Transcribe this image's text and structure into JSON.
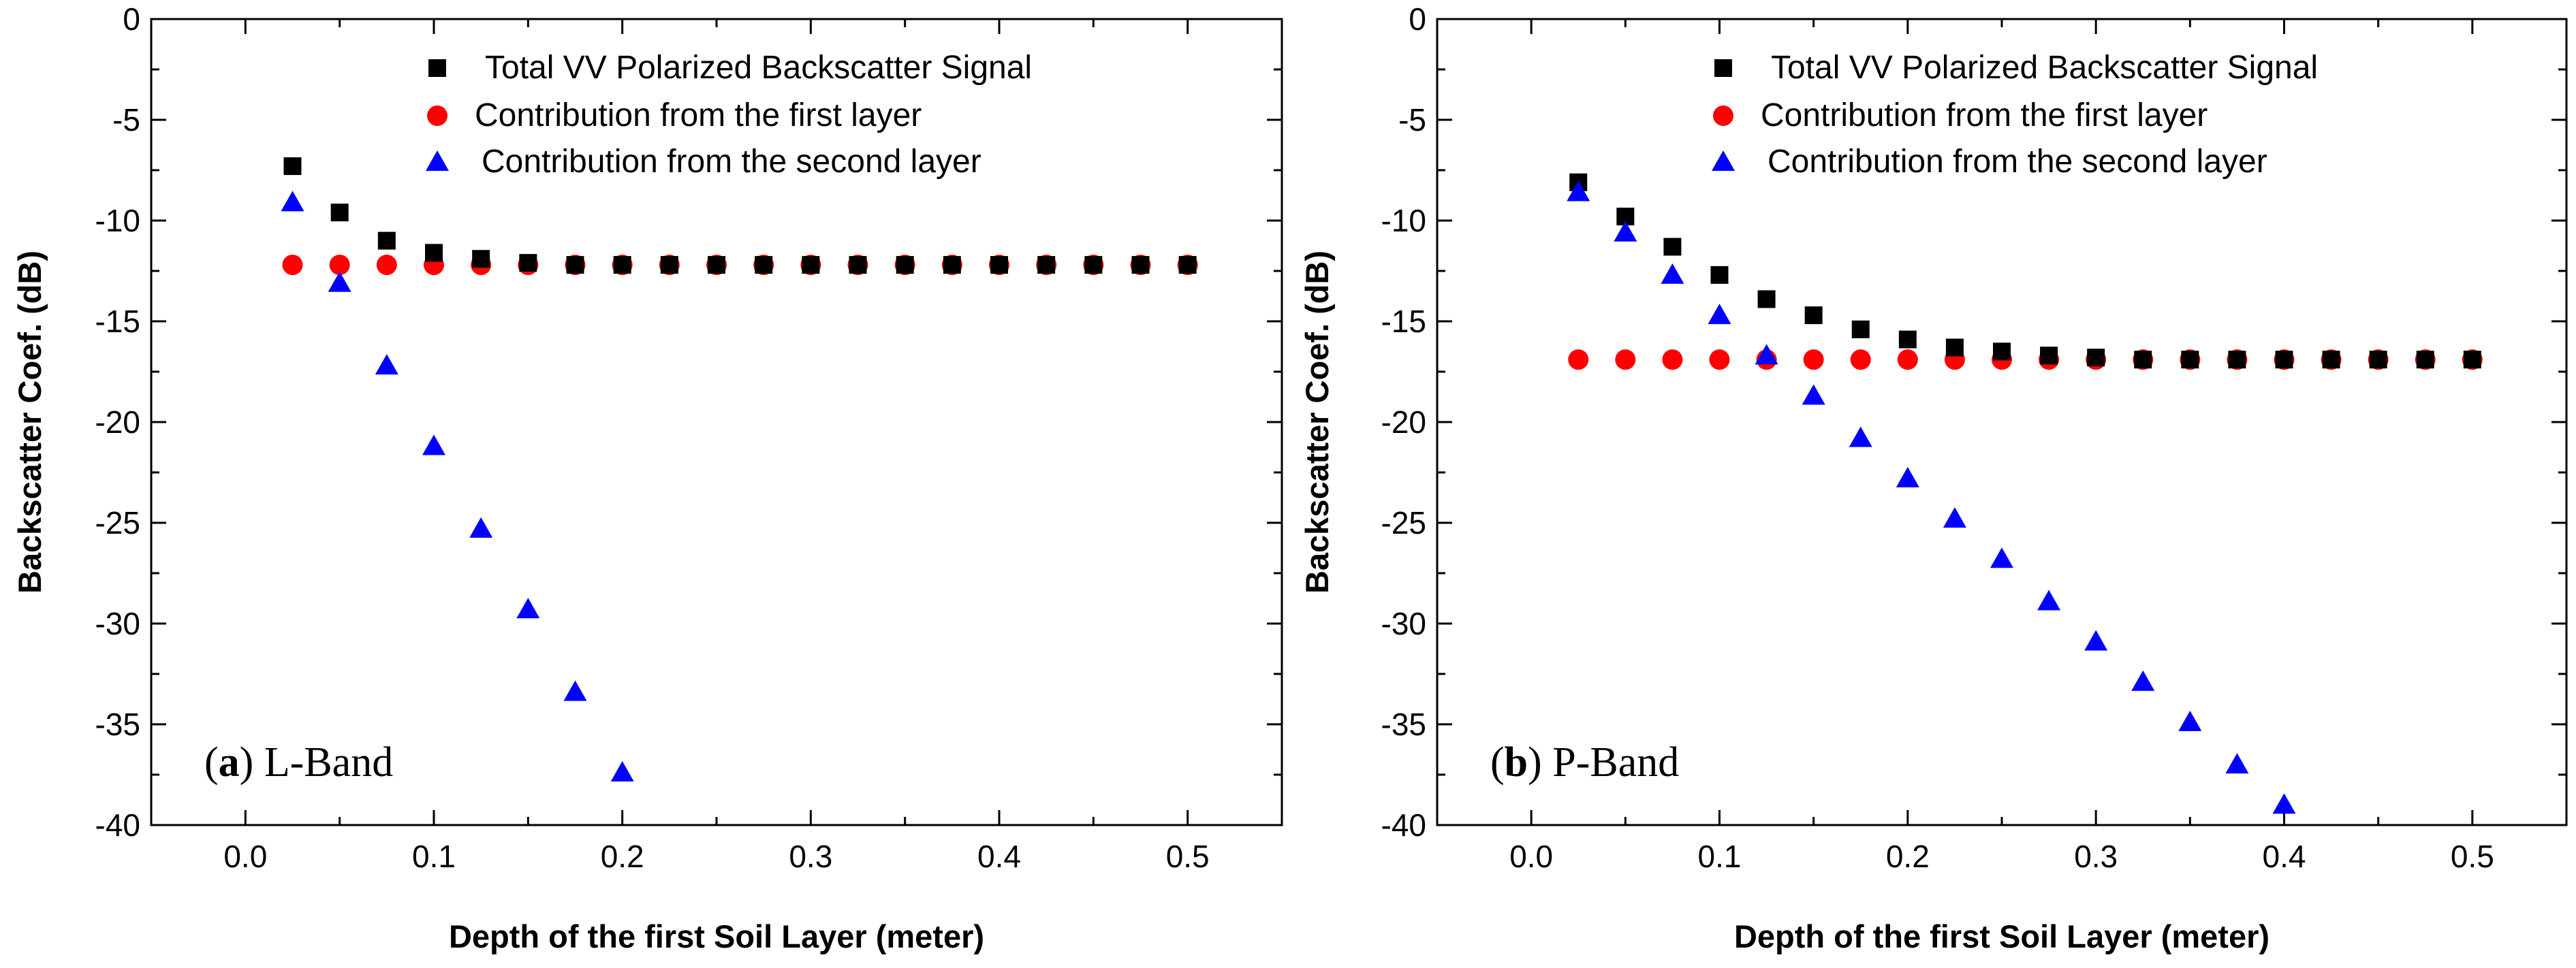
{
  "chart_data": [
    {
      "type": "scatter",
      "panel_letter": "a",
      "panel_text": "L-Band",
      "xlabel": "Depth of the first Soil Layer (meter)",
      "ylabel": "Backscatter Coef. (dB)",
      "xlim": [
        -0.05,
        0.55
      ],
      "ylim": [
        -40,
        0
      ],
      "x_ticks": [
        "0.0",
        "0.1",
        "0.2",
        "0.3",
        "0.4",
        "0.5"
      ],
      "y_ticks": [
        "0",
        "-5",
        "-10",
        "-15",
        "-20",
        "-25",
        "-30",
        "-35",
        "-40"
      ],
      "legend_position": "top-right",
      "series": [
        {
          "name": "Total VV Polarized Backscatter Signal",
          "marker": "square",
          "color": "#000000",
          "x": [
            0.025,
            0.05,
            0.075,
            0.1,
            0.125,
            0.15,
            0.175,
            0.2,
            0.225,
            0.25,
            0.275,
            0.3,
            0.325,
            0.35,
            0.375,
            0.4,
            0.425,
            0.45,
            0.475,
            0.5
          ],
          "y": [
            -7.3,
            -9.6,
            -11.0,
            -11.6,
            -11.9,
            -12.1,
            -12.2,
            -12.2,
            -12.2,
            -12.2,
            -12.2,
            -12.2,
            -12.2,
            -12.2,
            -12.2,
            -12.2,
            -12.2,
            -12.2,
            -12.2,
            -12.2
          ]
        },
        {
          "name": "Contribution from the first layer",
          "marker": "circle",
          "color": "#ff0000",
          "x": [
            0.025,
            0.05,
            0.075,
            0.1,
            0.125,
            0.15,
            0.175,
            0.2,
            0.225,
            0.25,
            0.275,
            0.3,
            0.325,
            0.35,
            0.375,
            0.4,
            0.425,
            0.45,
            0.475,
            0.5
          ],
          "y": [
            -12.2,
            -12.2,
            -12.2,
            -12.2,
            -12.2,
            -12.2,
            -12.2,
            -12.2,
            -12.2,
            -12.2,
            -12.2,
            -12.2,
            -12.2,
            -12.2,
            -12.2,
            -12.2,
            -12.2,
            -12.2,
            -12.2,
            -12.2
          ]
        },
        {
          "name": "Contribution from the second layer",
          "marker": "triangle",
          "color": "#0000ff",
          "x": [
            0.025,
            0.05,
            0.075,
            0.1,
            0.125,
            0.15,
            0.175,
            0.2
          ],
          "y": [
            -9.1,
            -13.1,
            -17.2,
            -21.2,
            -25.3,
            -29.3,
            -33.4,
            -37.4
          ]
        }
      ]
    },
    {
      "type": "scatter",
      "panel_letter": "b",
      "panel_text": "P-Band",
      "xlabel": "Depth of the first Soil Layer (meter)",
      "ylabel": "Backscatter Coef. (dB)",
      "xlim": [
        -0.05,
        0.55
      ],
      "ylim": [
        -40,
        0
      ],
      "x_ticks": [
        "0.0",
        "0.1",
        "0.2",
        "0.3",
        "0.4",
        "0.5"
      ],
      "y_ticks": [
        "0",
        "-5",
        "-10",
        "-15",
        "-20",
        "-25",
        "-30",
        "-35",
        "-40"
      ],
      "legend_position": "top-right",
      "series": [
        {
          "name": "Total VV Polarized Backscatter Signal",
          "marker": "square",
          "color": "#000000",
          "x": [
            0.025,
            0.05,
            0.075,
            0.1,
            0.125,
            0.15,
            0.175,
            0.2,
            0.225,
            0.25,
            0.275,
            0.3,
            0.325,
            0.35,
            0.375,
            0.4,
            0.425,
            0.45,
            0.475,
            0.5
          ],
          "y": [
            -8.1,
            -9.8,
            -11.3,
            -12.7,
            -13.9,
            -14.7,
            -15.4,
            -15.9,
            -16.3,
            -16.5,
            -16.7,
            -16.8,
            -16.9,
            -16.9,
            -16.9,
            -16.9,
            -16.9,
            -16.9,
            -16.9,
            -16.9
          ]
        },
        {
          "name": "Contribution from the first layer",
          "marker": "circle",
          "color": "#ff0000",
          "x": [
            0.025,
            0.05,
            0.075,
            0.1,
            0.125,
            0.15,
            0.175,
            0.2,
            0.225,
            0.25,
            0.275,
            0.3,
            0.325,
            0.35,
            0.375,
            0.4,
            0.425,
            0.45,
            0.475,
            0.5
          ],
          "y": [
            -16.9,
            -16.9,
            -16.9,
            -16.9,
            -16.9,
            -16.9,
            -16.9,
            -16.9,
            -16.9,
            -16.9,
            -16.9,
            -16.9,
            -16.9,
            -16.9,
            -16.9,
            -16.9,
            -16.9,
            -16.9,
            -16.9,
            -16.9
          ]
        },
        {
          "name": "Contribution from the second layer",
          "marker": "triangle",
          "color": "#0000ff",
          "x": [
            0.025,
            0.05,
            0.075,
            0.1,
            0.125,
            0.15,
            0.175,
            0.2,
            0.225,
            0.25,
            0.275,
            0.3,
            0.325,
            0.35,
            0.375,
            0.4
          ],
          "y": [
            -8.6,
            -10.6,
            -12.7,
            -14.7,
            -16.7,
            -18.7,
            -20.8,
            -22.8,
            -24.8,
            -26.8,
            -28.9,
            -30.9,
            -32.9,
            -34.9,
            -37.0,
            -39.0
          ]
        }
      ]
    }
  ]
}
